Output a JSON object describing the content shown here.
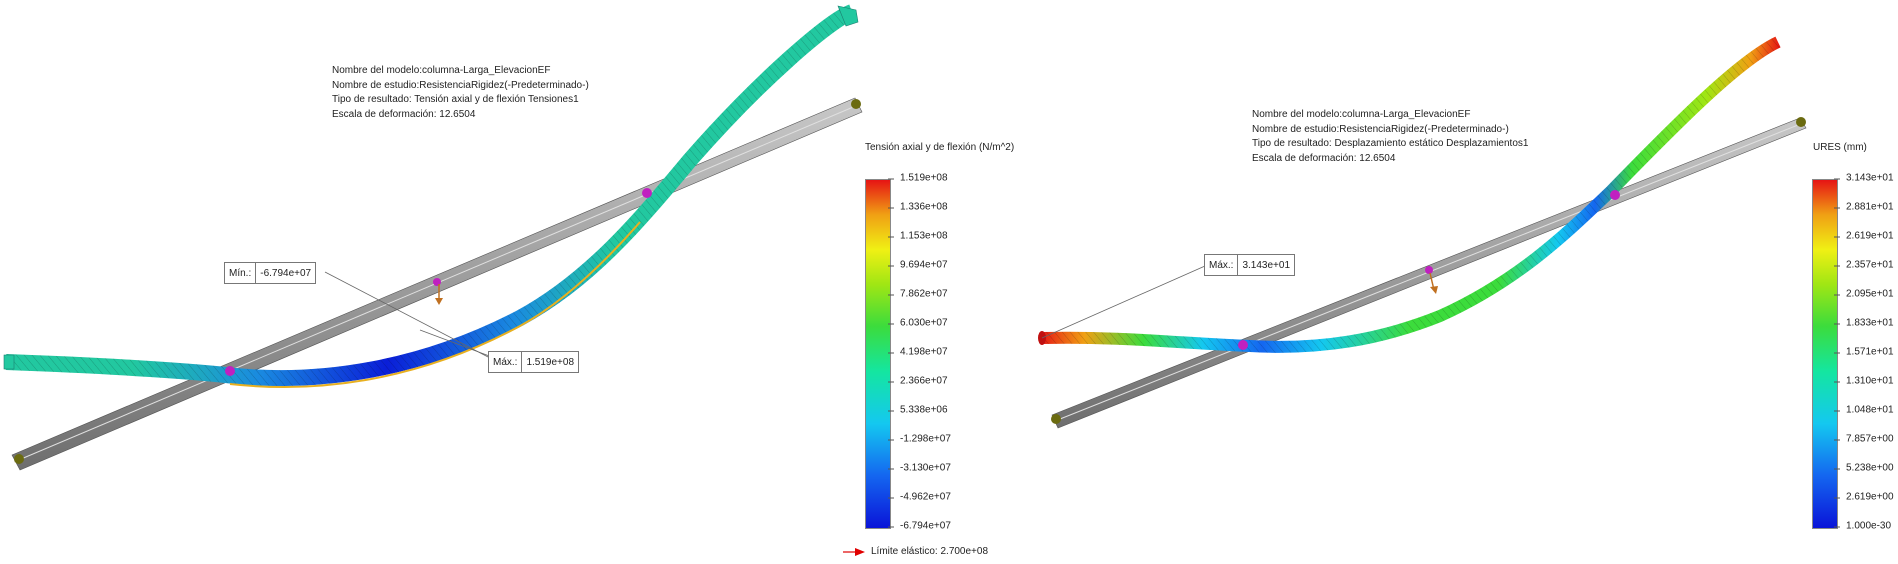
{
  "left_view": {
    "info": {
      "model": "Nombre del modelo:columna-Larga_ElevacionEF",
      "study": "Nombre de estudio:ResistenciaRigidez(-Predeterminado-)",
      "result_type": "Tipo de resultado: Tensión axial y de flexión Tensiones1",
      "deformation_scale": "Escala de deformación: 12.6504"
    },
    "legend": {
      "title": "Tensión axial y de flexión (N/m^2)",
      "ticks": [
        "1.519e+08",
        "1.336e+08",
        "1.153e+08",
        "9.694e+07",
        "7.862e+07",
        "6.030e+07",
        "4.198e+07",
        "2.366e+07",
        "5.338e+06",
        "-1.298e+07",
        "-3.130e+07",
        "-4.962e+07",
        "-6.794e+07"
      ]
    },
    "probe_min": {
      "label": "Mín.:",
      "value": "-6.794e+07"
    },
    "probe_max": {
      "label": "Máx.:",
      "value": "1.519e+08"
    },
    "yield_limit": "Límite elástico: 2.700e+08"
  },
  "right_view": {
    "info": {
      "model": "Nombre del modelo:columna-Larga_ElevacionEF",
      "study": "Nombre de estudio:ResistenciaRigidez(-Predeterminado-)",
      "result_type": "Tipo de resultado: Desplazamiento estático Desplazamientos1",
      "deformation_scale": "Escala de deformación: 12.6504"
    },
    "legend": {
      "title": "URES (mm)",
      "ticks": [
        "3.143e+01",
        "2.881e+01",
        "2.619e+01",
        "2.357e+01",
        "2.095e+01",
        "1.833e+01",
        "1.571e+01",
        "1.310e+01",
        "1.048e+01",
        "7.857e+00",
        "5.238e+00",
        "2.619e+00",
        "1.000e-30"
      ]
    },
    "probe_max": {
      "label": "Máx.:",
      "value": "3.143e+01"
    }
  },
  "colors": {
    "colormap": [
      "#0a14d8",
      "#1466f0",
      "#14c8f0",
      "#14e6a0",
      "#3cdc3c",
      "#a0e614",
      "#f0f014",
      "#f0a014",
      "#e61414"
    ],
    "undeformed_beam": "#9a9a9a",
    "stress_beam_body": "#22c8a0",
    "marker": "#c020c0",
    "support": "#6b6b10",
    "yield_arrow": "#e00000"
  }
}
